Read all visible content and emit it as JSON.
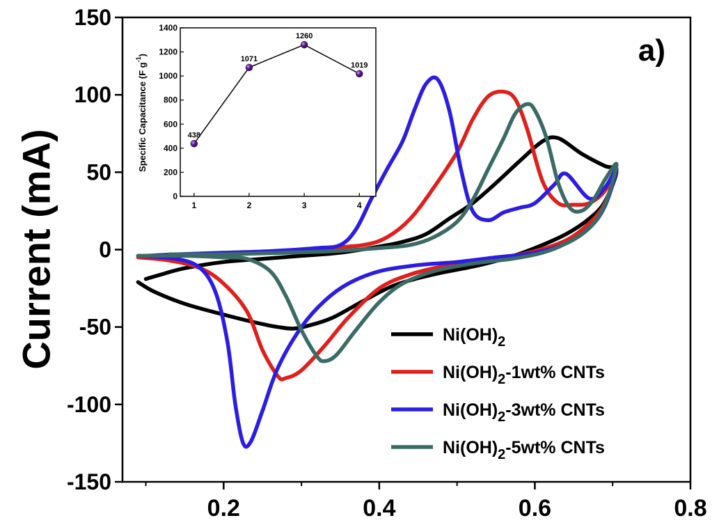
{
  "chart_data": [
    {
      "type": "line",
      "panel_label": "a)",
      "xlabel": "",
      "ylabel": "Current (mA)",
      "xlim": [
        0.07,
        0.8
      ],
      "ylim": [
        -150,
        150
      ],
      "xticks": [
        "0.2",
        "0.4",
        "0.6",
        "0.8"
      ],
      "xtick_values": [
        0.2,
        0.4,
        0.6,
        0.8
      ],
      "yticks": [
        "150",
        "100",
        "50",
        "0",
        "-50",
        "-100",
        "-150"
      ],
      "ytick_values": [
        150,
        100,
        50,
        0,
        -50,
        -100,
        -150
      ],
      "legend_position": "bottom-right",
      "series": [
        {
          "name": "Ni(OH)",
          "name_subscript": "2",
          "name_suffix": "",
          "color": "#000000",
          "points": [
            [
              0.09,
              -21
            ],
            [
              0.11,
              -27
            ],
            [
              0.15,
              -35
            ],
            [
              0.2,
              -42
            ],
            [
              0.24,
              -47
            ],
            [
              0.27,
              -50
            ],
            [
              0.29,
              -51
            ],
            [
              0.31,
              -49
            ],
            [
              0.34,
              -44
            ],
            [
              0.38,
              -33
            ],
            [
              0.42,
              -23
            ],
            [
              0.47,
              -16
            ],
            [
              0.52,
              -11
            ],
            [
              0.56,
              -6
            ],
            [
              0.6,
              1
            ],
            [
              0.64,
              10
            ],
            [
              0.67,
              20
            ],
            [
              0.69,
              31
            ],
            [
              0.705,
              51
            ],
            [
              0.69,
              54
            ],
            [
              0.66,
              62
            ],
            [
              0.63,
              72
            ],
            [
              0.61,
              70
            ],
            [
              0.58,
              57
            ],
            [
              0.55,
              43
            ],
            [
              0.52,
              30
            ],
            [
              0.49,
              20
            ],
            [
              0.46,
              10
            ],
            [
              0.43,
              5
            ],
            [
              0.4,
              2
            ],
            [
              0.35,
              -2
            ],
            [
              0.3,
              -4
            ],
            [
              0.25,
              -6
            ],
            [
              0.2,
              -8
            ],
            [
              0.15,
              -12
            ],
            [
              0.12,
              -16
            ],
            [
              0.1,
              -19
            ]
          ]
        },
        {
          "name": "Ni(OH)",
          "name_subscript": "2",
          "name_suffix": "-1wt% CNTs",
          "color": "#e0201b",
          "points": [
            [
              0.09,
              -5
            ],
            [
              0.13,
              -7
            ],
            [
              0.17,
              -12
            ],
            [
              0.2,
              -22
            ],
            [
              0.23,
              -40
            ],
            [
              0.25,
              -65
            ],
            [
              0.27,
              -82
            ],
            [
              0.28,
              -83
            ],
            [
              0.3,
              -78
            ],
            [
              0.33,
              -62
            ],
            [
              0.36,
              -44
            ],
            [
              0.4,
              -25
            ],
            [
              0.44,
              -16
            ],
            [
              0.48,
              -11
            ],
            [
              0.52,
              -8
            ],
            [
              0.56,
              -5
            ],
            [
              0.6,
              -1
            ],
            [
              0.64,
              6
            ],
            [
              0.67,
              17
            ],
            [
              0.69,
              30
            ],
            [
              0.705,
              52
            ],
            [
              0.69,
              38
            ],
            [
              0.67,
              30
            ],
            [
              0.65,
              29
            ],
            [
              0.63,
              30
            ],
            [
              0.61,
              44
            ],
            [
              0.59,
              78
            ],
            [
              0.575,
              97
            ],
            [
              0.56,
              102
            ],
            [
              0.54,
              99
            ],
            [
              0.52,
              84
            ],
            [
              0.5,
              63
            ],
            [
              0.47,
              40
            ],
            [
              0.44,
              20
            ],
            [
              0.41,
              8
            ],
            [
              0.38,
              3
            ],
            [
              0.33,
              1
            ],
            [
              0.28,
              -1
            ],
            [
              0.22,
              -2
            ],
            [
              0.16,
              -3
            ],
            [
              0.11,
              -4
            ]
          ]
        },
        {
          "name": "Ni(OH)",
          "name_subscript": "2",
          "name_suffix": "-3wt% CNTs",
          "color": "#2b1de2",
          "points": [
            [
              0.09,
              -4
            ],
            [
              0.14,
              -6
            ],
            [
              0.17,
              -12
            ],
            [
              0.19,
              -28
            ],
            [
              0.205,
              -60
            ],
            [
              0.215,
              -100
            ],
            [
              0.225,
              -125
            ],
            [
              0.235,
              -124
            ],
            [
              0.25,
              -104
            ],
            [
              0.27,
              -76
            ],
            [
              0.3,
              -50
            ],
            [
              0.33,
              -33
            ],
            [
              0.36,
              -22
            ],
            [
              0.4,
              -14
            ],
            [
              0.45,
              -10
            ],
            [
              0.5,
              -8
            ],
            [
              0.55,
              -5
            ],
            [
              0.6,
              -2
            ],
            [
              0.64,
              4
            ],
            [
              0.67,
              14
            ],
            [
              0.69,
              28
            ],
            [
              0.705,
              52
            ],
            [
              0.69,
              40
            ],
            [
              0.67,
              33
            ],
            [
              0.64,
              49
            ],
            [
              0.625,
              42
            ],
            [
              0.6,
              30
            ],
            [
              0.58,
              27
            ],
            [
              0.56,
              24
            ],
            [
              0.54,
              19
            ],
            [
              0.52,
              25
            ],
            [
              0.505,
              52
            ],
            [
              0.49,
              90
            ],
            [
              0.475,
              110
            ],
            [
              0.46,
              107
            ],
            [
              0.445,
              90
            ],
            [
              0.43,
              70
            ],
            [
              0.41,
              52
            ],
            [
              0.39,
              33
            ],
            [
              0.37,
              13
            ],
            [
              0.35,
              3
            ],
            [
              0.32,
              1
            ],
            [
              0.26,
              -1
            ],
            [
              0.2,
              -2
            ],
            [
              0.14,
              -3
            ],
            [
              0.1,
              -4
            ]
          ]
        },
        {
          "name": "Ni(OH)",
          "name_subscript": "2",
          "name_suffix": "-5wt% CNTs",
          "color": "#3b6b66",
          "points": [
            [
              0.09,
              -4
            ],
            [
              0.15,
              -4
            ],
            [
              0.2,
              -5
            ],
            [
              0.23,
              -6
            ],
            [
              0.26,
              -14
            ],
            [
              0.28,
              -30
            ],
            [
              0.3,
              -52
            ],
            [
              0.32,
              -69
            ],
            [
              0.33,
              -72
            ],
            [
              0.345,
              -68
            ],
            [
              0.37,
              -52
            ],
            [
              0.4,
              -34
            ],
            [
              0.43,
              -22
            ],
            [
              0.47,
              -14
            ],
            [
              0.52,
              -9
            ],
            [
              0.57,
              -6
            ],
            [
              0.61,
              -2
            ],
            [
              0.64,
              4
            ],
            [
              0.67,
              14
            ],
            [
              0.69,
              29
            ],
            [
              0.705,
              55
            ],
            [
              0.69,
              45
            ],
            [
              0.675,
              32
            ],
            [
              0.66,
              25
            ],
            [
              0.645,
              27
            ],
            [
              0.63,
              43
            ],
            [
              0.615,
              72
            ],
            [
              0.6,
              90
            ],
            [
              0.59,
              94
            ],
            [
              0.575,
              88
            ],
            [
              0.56,
              72
            ],
            [
              0.54,
              52
            ],
            [
              0.52,
              32
            ],
            [
              0.5,
              18
            ],
            [
              0.47,
              8
            ],
            [
              0.44,
              3
            ],
            [
              0.4,
              1
            ],
            [
              0.34,
              -1
            ],
            [
              0.28,
              -2
            ],
            [
              0.2,
              -3
            ],
            [
              0.13,
              -3
            ]
          ]
        }
      ]
    },
    {
      "type": "line",
      "xlabel": "",
      "ylabel": "Specific Capacitance",
      "ylabel_unit_prefix": "(F g",
      "ylabel_unit_sup": "-1",
      "ylabel_unit_suffix": ")",
      "xlim": [
        0.75,
        4.3
      ],
      "ylim": [
        0,
        1400
      ],
      "xticks": [
        "1",
        "2",
        "3",
        "4"
      ],
      "xtick_values": [
        1,
        2,
        3,
        4
      ],
      "yticks": [
        "0",
        "200",
        "400",
        "600",
        "800",
        "1000",
        "1200",
        "1400"
      ],
      "ytick_values": [
        0,
        200,
        400,
        600,
        800,
        1000,
        1200,
        1400
      ],
      "x": [
        1,
        2,
        3,
        4
      ],
      "values": [
        438,
        1071,
        1260,
        1019
      ],
      "labels": [
        "438",
        "1071",
        "1260",
        "1019"
      ],
      "marker_color": "#6a1e9c"
    }
  ]
}
